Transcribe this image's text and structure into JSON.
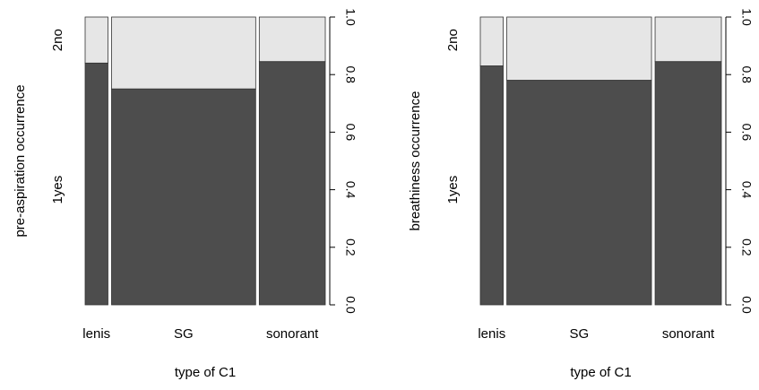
{
  "chart_data": [
    {
      "type": "spineplot",
      "xlabel": "type of C1",
      "ylabel": "pre-aspiration occurrence",
      "categories": [
        "lenis",
        "SG",
        "sonorant"
      ],
      "category_widths": [
        0.083,
        0.524,
        0.24
      ],
      "levels": [
        "1yes",
        "2no"
      ],
      "series": [
        {
          "name": "1yes",
          "values": [
            0.84,
            0.75,
            0.845
          ]
        },
        {
          "name": "2no",
          "values": [
            0.16,
            0.25,
            0.155
          ]
        }
      ],
      "ylim": [
        0,
        1
      ],
      "right_axis_ticks": [
        "0.0",
        "0.2",
        "0.4",
        "0.6",
        "0.8",
        "1.0"
      ],
      "colors": {
        "1yes": "#4d4d4d",
        "2no": "#e6e6e6"
      }
    },
    {
      "type": "spineplot",
      "xlabel": "type of C1",
      "ylabel": "breathiness occurrence",
      "categories": [
        "lenis",
        "SG",
        "sonorant"
      ],
      "category_widths": [
        0.083,
        0.524,
        0.24
      ],
      "levels": [
        "1yes",
        "2no"
      ],
      "series": [
        {
          "name": "1yes",
          "values": [
            0.83,
            0.78,
            0.845
          ]
        },
        {
          "name": "2no",
          "values": [
            0.17,
            0.22,
            0.155
          ]
        }
      ],
      "ylim": [
        0,
        1
      ],
      "right_axis_ticks": [
        "0.0",
        "0.2",
        "0.4",
        "0.6",
        "0.8",
        "1.0"
      ],
      "colors": {
        "1yes": "#4d4d4d",
        "2no": "#e6e6e6"
      }
    }
  ]
}
